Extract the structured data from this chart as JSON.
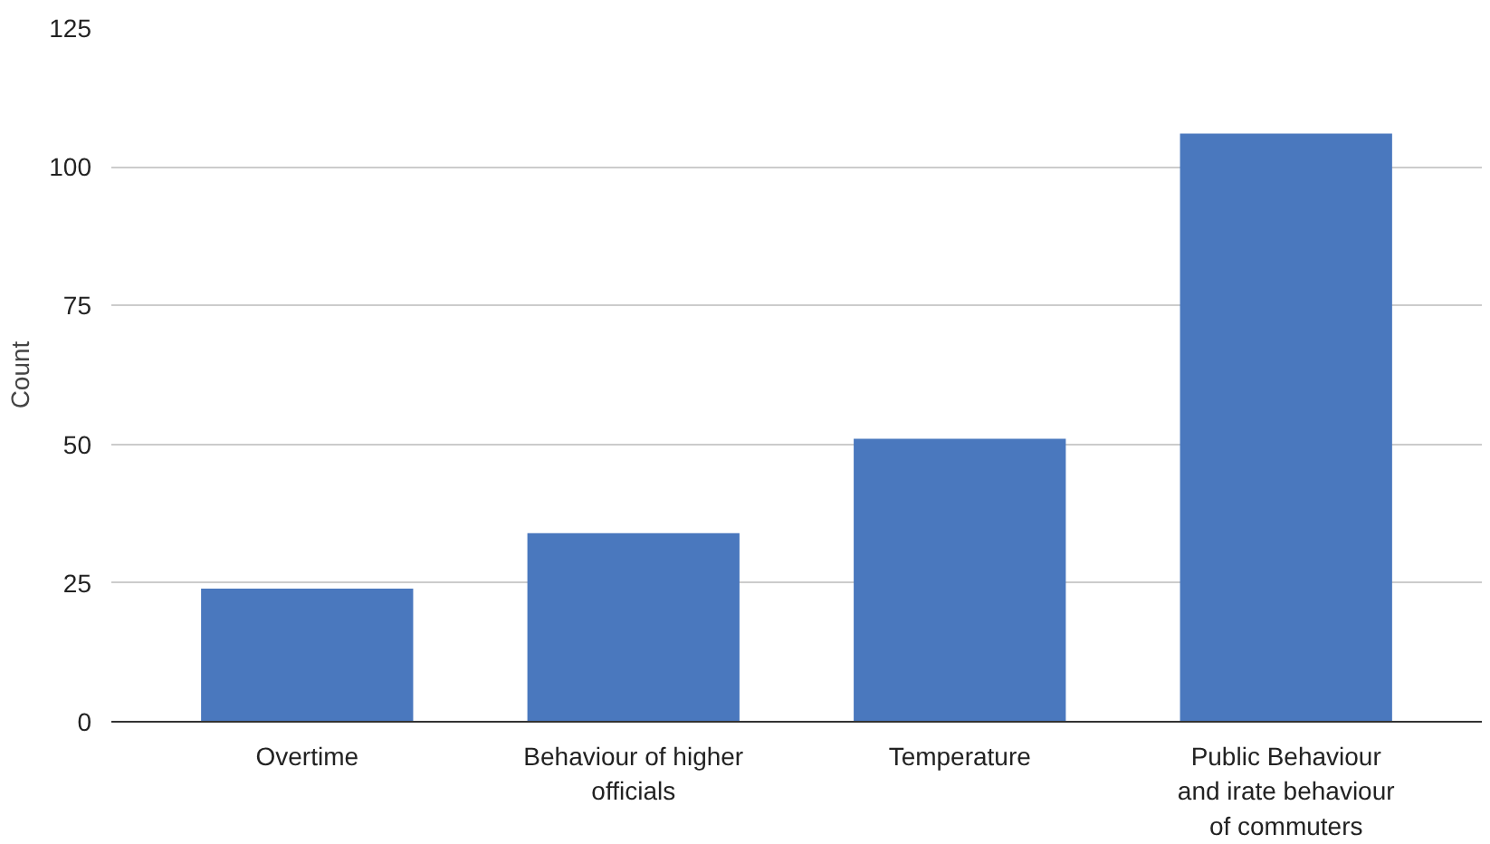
{
  "chart_data": {
    "type": "bar",
    "ylabel": "Count",
    "categories": [
      "Overtime",
      "Behaviour of higher officials",
      "Temperature",
      "Public Behaviour and irate behaviour of commuters"
    ],
    "values": [
      24,
      34,
      51,
      106
    ],
    "color": "#4a78be",
    "ylim": [
      0,
      125
    ],
    "yticks": [
      0,
      25,
      50,
      75,
      100,
      125
    ],
    "grid": "y"
  }
}
